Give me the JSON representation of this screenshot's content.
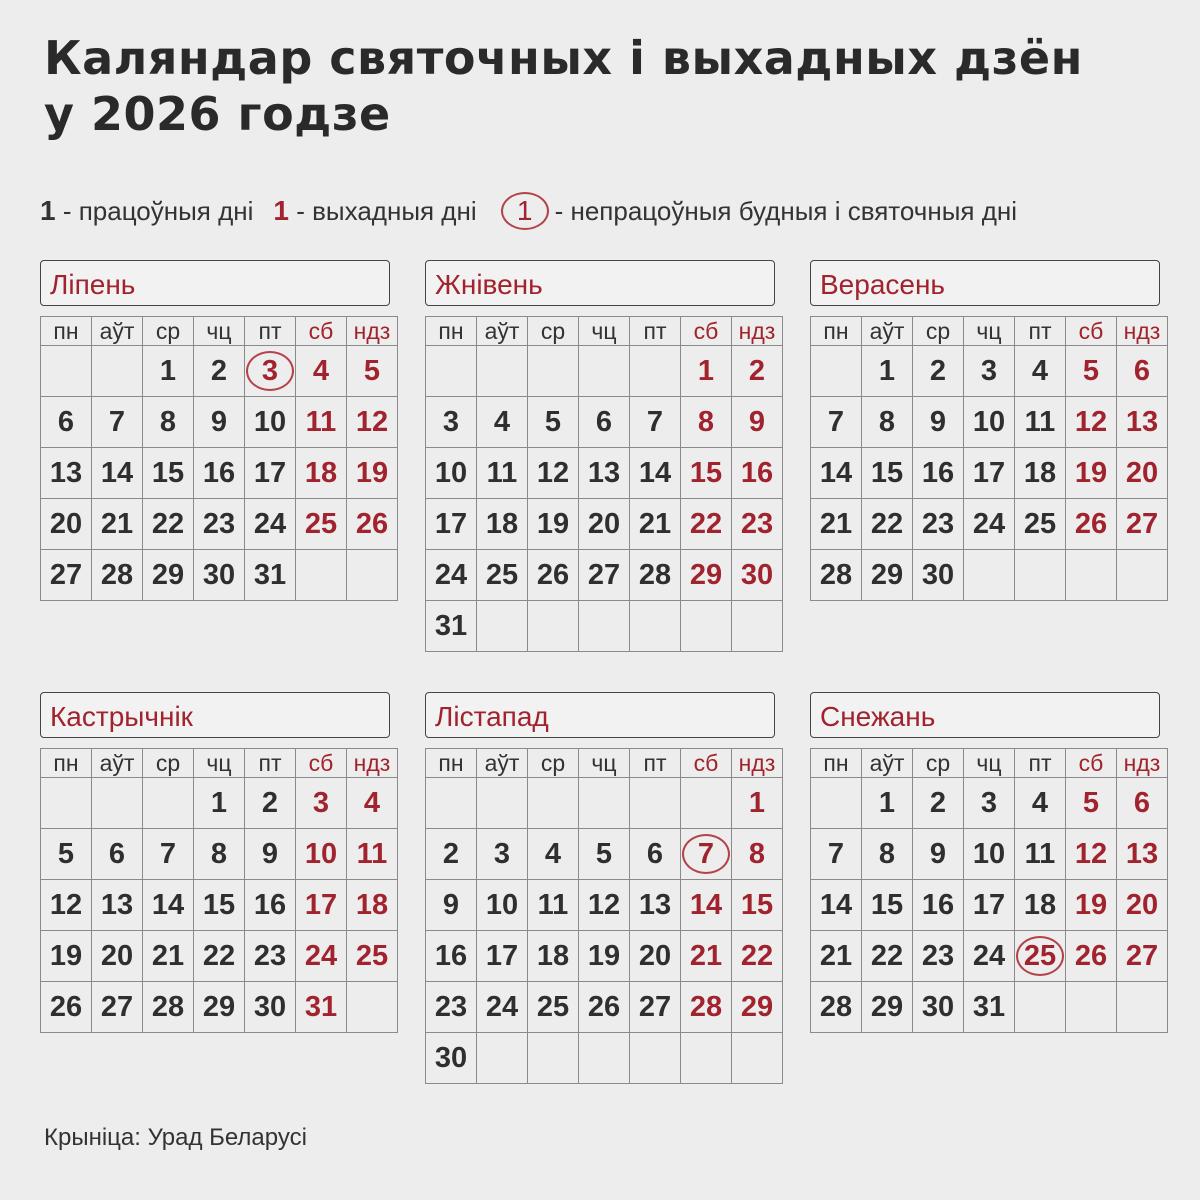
{
  "title": [
    "Каляндар святочных і выхадных дзён",
    "у 2026 годзе"
  ],
  "legend": {
    "working": {
      "sample": "1",
      "label": "- працоўныя дні"
    },
    "weekend": {
      "sample": "1",
      "label": "- выхадныя дні"
    },
    "holiday": {
      "sample": "1",
      "label": "- непрацоўныя будныя і святочныя дні"
    }
  },
  "weekdays": [
    "пн",
    "аўт",
    "ср",
    "чц",
    "пт",
    "сб",
    "ндз"
  ],
  "colors": {
    "accent": "#a1232d",
    "text": "#2f2f2f",
    "background": "#ededed"
  },
  "months": [
    {
      "name": "Ліпень",
      "start_weekday": 2,
      "days": 31,
      "circled": [
        3
      ]
    },
    {
      "name": "Жнівень",
      "start_weekday": 5,
      "days": 31,
      "circled": []
    },
    {
      "name": "Верасень",
      "start_weekday": 1,
      "days": 30,
      "circled": []
    },
    {
      "name": "Кастрычнік",
      "start_weekday": 3,
      "days": 31,
      "circled": []
    },
    {
      "name": "Лістапад",
      "start_weekday": 6,
      "days": 30,
      "circled": [
        7
      ]
    },
    {
      "name": "Снежань",
      "start_weekday": 1,
      "days": 31,
      "circled": [
        25
      ]
    }
  ],
  "source": "Крыніца: Урад Беларусі"
}
